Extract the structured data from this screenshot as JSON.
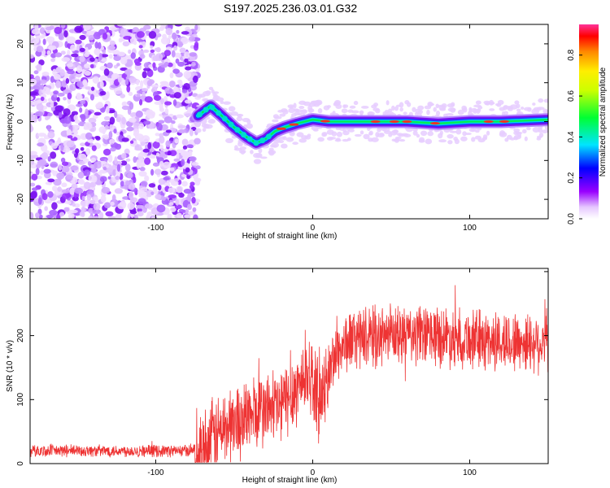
{
  "title": "S197.2025.236.03.01.G32",
  "chart_data": [
    {
      "type": "heatmap",
      "xlabel": "Height of straight line (km)",
      "ylabel": "Frequency (Hz)",
      "xlim": [
        -180,
        150
      ],
      "ylim": [
        -25,
        25
      ],
      "xticks": [
        -100,
        0,
        100
      ],
      "yticks": [
        -20,
        -10,
        0,
        10,
        20
      ],
      "colorbar": {
        "label": "Normalized spectral amplitude",
        "range": [
          0,
          0.95
        ],
        "ticks": [
          0.0,
          0.2,
          0.4,
          0.6,
          0.8
        ]
      },
      "ridge": {
        "x": [
          -73,
          -65,
          -58,
          -50,
          -42,
          -36,
          -30,
          -24,
          -18,
          -10,
          0,
          10,
          20,
          40,
          60,
          80,
          100,
          120,
          150
        ],
        "y": [
          1.5,
          4.0,
          1.5,
          -1.5,
          -4.0,
          -5.5,
          -4.5,
          -2.5,
          -1.5,
          -0.5,
          0.5,
          0.0,
          0.0,
          0.0,
          0.0,
          -0.5,
          0.0,
          0.0,
          0.5
        ]
      },
      "noise_region": {
        "x_from": -180,
        "x_to": -73
      }
    },
    {
      "type": "line",
      "xlabel": "Height of straight line (km)",
      "ylabel": "SNR (10 * v/v)",
      "xlim": [
        -180,
        150
      ],
      "ylim": [
        0,
        305
      ],
      "xticks": [
        -100,
        0,
        100
      ],
      "yticks": [
        0,
        100,
        200,
        300
      ],
      "series": [
        {
          "name": "SNR",
          "color": "#ee3333",
          "trend_x": [
            -180,
            -80,
            -70,
            -62,
            -50,
            -40,
            -30,
            -20,
            -10,
            -2,
            5,
            10,
            15,
            25,
            50,
            80,
            100,
            120,
            150
          ],
          "trend_y": [
            20,
            20,
            25,
            45,
            65,
            75,
            85,
            90,
            120,
            145,
            90,
            140,
            175,
            195,
            200,
            200,
            195,
            190,
            190
          ]
        }
      ]
    }
  ]
}
